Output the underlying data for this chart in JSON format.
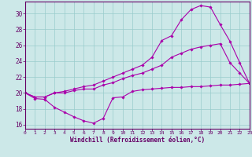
{
  "xlabel": "Windchill (Refroidissement éolien,°C)",
  "xlim": [
    0,
    23
  ],
  "ylim": [
    15.5,
    31.5
  ],
  "yticks": [
    16,
    18,
    20,
    22,
    24,
    26,
    28,
    30
  ],
  "xticks": [
    0,
    1,
    2,
    3,
    4,
    5,
    6,
    7,
    8,
    9,
    10,
    11,
    12,
    13,
    14,
    15,
    16,
    17,
    18,
    19,
    20,
    21,
    22,
    23
  ],
  "bg_color": "#cce8e8",
  "grid_color": "#99cccc",
  "line_color": "#aa00aa",
  "line1_x": [
    0,
    1,
    2,
    3,
    4,
    5,
    6,
    7,
    8,
    9,
    10,
    11,
    12,
    13,
    14,
    15,
    16,
    17,
    18,
    19,
    20,
    21,
    22,
    23
  ],
  "line1_y": [
    20.0,
    19.3,
    19.2,
    18.2,
    17.6,
    17.0,
    16.5,
    16.2,
    16.8,
    19.4,
    19.5,
    20.2,
    20.4,
    20.5,
    20.6,
    20.7,
    20.7,
    20.8,
    20.8,
    20.9,
    21.0,
    21.0,
    21.1,
    21.2
  ],
  "line2_x": [
    0,
    1,
    2,
    3,
    4,
    5,
    6,
    7,
    8,
    9,
    10,
    11,
    12,
    13,
    14,
    15,
    16,
    17,
    18,
    19,
    20,
    21,
    22,
    23
  ],
  "line2_y": [
    20.0,
    19.5,
    19.5,
    20.0,
    20.0,
    20.3,
    20.5,
    20.5,
    21.0,
    21.3,
    21.8,
    22.2,
    22.5,
    23.0,
    23.5,
    24.5,
    25.0,
    25.5,
    25.8,
    26.0,
    26.2,
    23.8,
    22.5,
    21.2
  ],
  "line3_x": [
    0,
    1,
    2,
    3,
    4,
    5,
    6,
    7,
    8,
    9,
    10,
    11,
    12,
    13,
    14,
    15,
    16,
    17,
    18,
    19,
    20,
    21,
    22,
    23
  ],
  "line3_y": [
    20.0,
    19.5,
    19.5,
    20.0,
    20.2,
    20.5,
    20.8,
    21.0,
    21.5,
    22.0,
    22.5,
    23.0,
    23.5,
    24.5,
    26.6,
    27.2,
    29.2,
    30.5,
    31.0,
    30.8,
    28.6,
    26.5,
    23.8,
    21.2
  ]
}
